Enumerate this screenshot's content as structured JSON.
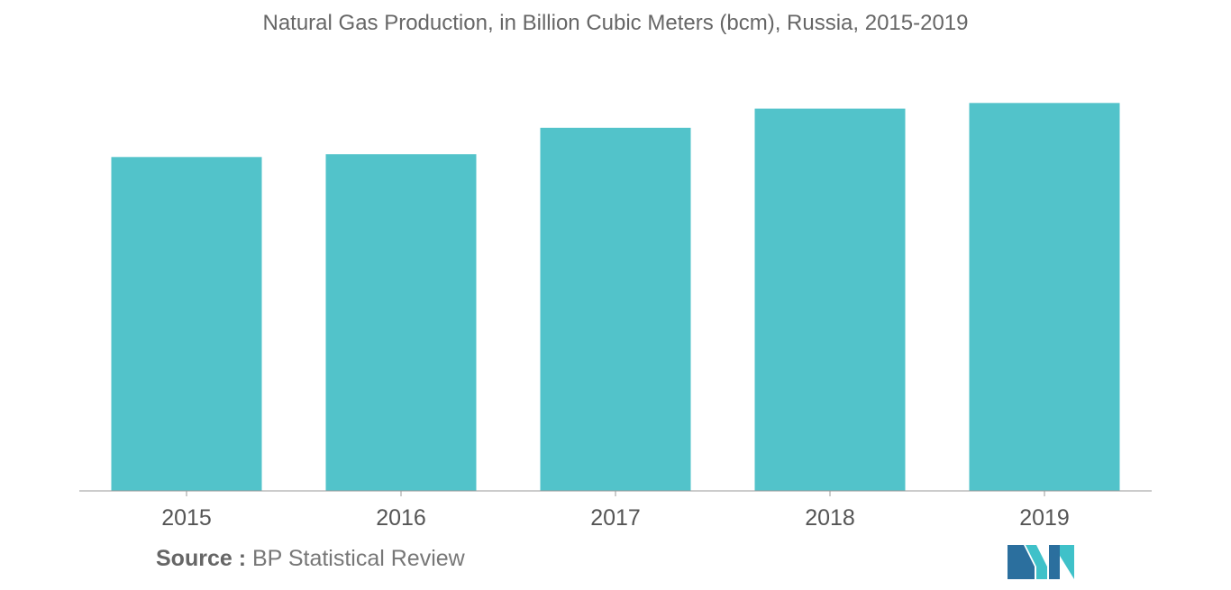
{
  "colors": {
    "bar": "#52c3ca",
    "axis": "#999999",
    "tick_label": "#555555",
    "logo_dark": "#2b6f9e",
    "logo_teal": "#3fc1c9"
  },
  "chart_data": {
    "type": "bar",
    "title": "Natural Gas Production, in Billion Cubic Meters (bcm), Russia, 2015-2019",
    "xlabel": "",
    "ylabel": "",
    "categories": [
      "2015",
      "2016",
      "2017",
      "2018",
      "2019"
    ],
    "values": [
      584.4,
      589.3,
      635.6,
      669.1,
      679.0
    ],
    "ylim": [
      0,
      700
    ],
    "grid": false,
    "legend": "none"
  },
  "source": {
    "label": "Source :",
    "text": "BP Statistical Review"
  },
  "logo": {
    "icon": "mordor-intelligence-logo-icon"
  }
}
